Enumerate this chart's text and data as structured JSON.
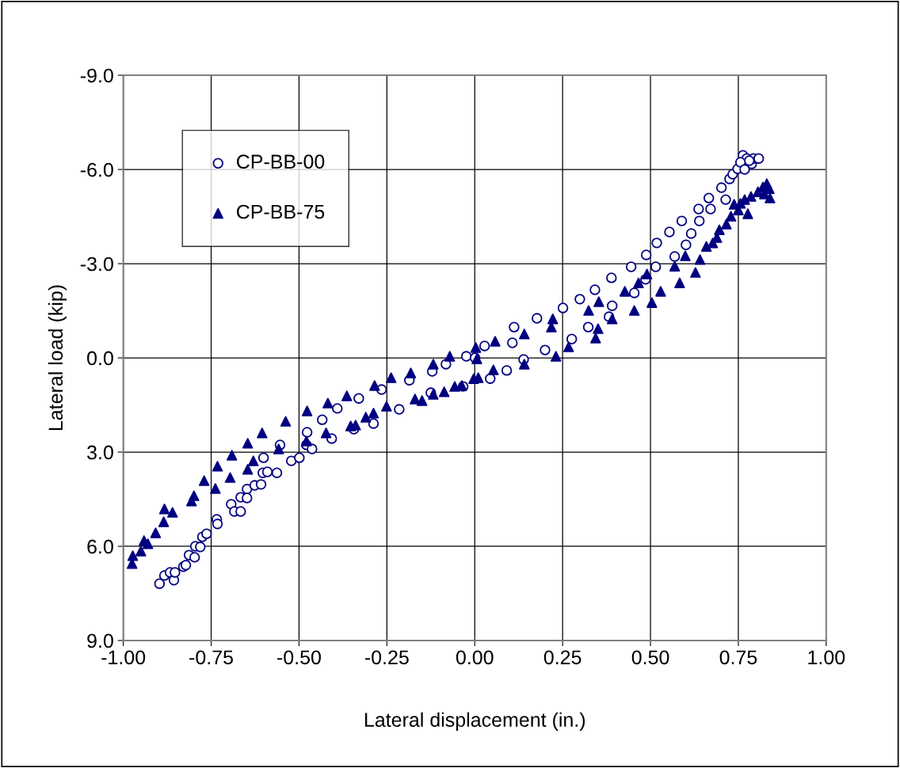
{
  "chart_data": {
    "type": "scatter",
    "xlabel": "Lateral displacement (in.)",
    "ylabel": "Lateral load (kip)",
    "xlim": [
      -1.0,
      1.0
    ],
    "xticks": [
      {
        "value": -1.0,
        "label": "-1.00"
      },
      {
        "value": -0.75,
        "label": "-0.75"
      },
      {
        "value": -0.5,
        "label": "-0.50"
      },
      {
        "value": -0.25,
        "label": "-0.25"
      },
      {
        "value": 0,
        "label": "0.00"
      },
      {
        "value": 0.25,
        "label": "0.25"
      },
      {
        "value": 0.5,
        "label": "0.50"
      },
      {
        "value": 0.75,
        "label": "0.75"
      },
      {
        "value": 1.0,
        "label": "1.00"
      }
    ],
    "ylim": [
      9,
      -9
    ],
    "yticks": [
      {
        "value": -9,
        "label": "-9.0"
      },
      {
        "value": -6,
        "label": "-6.0"
      },
      {
        "value": -3,
        "label": "-3.0"
      },
      {
        "value": 0,
        "label": "0.0"
      },
      {
        "value": 3,
        "label": "3.0"
      },
      {
        "value": 6,
        "label": "6.0"
      },
      {
        "value": 9,
        "label": "9.0"
      }
    ],
    "grid": true,
    "legend": "top left",
    "series": [
      {
        "name": "CP-BB-00",
        "color": "#000080",
        "marker": "circle",
        "x": [
          -0.897,
          -0.883,
          -0.867,
          -0.856,
          -0.853,
          -0.829,
          -0.822,
          -0.813,
          -0.797,
          -0.795,
          -0.781,
          -0.775,
          -0.763,
          -0.734,
          -0.732,
          -0.693,
          -0.684,
          -0.666,
          -0.666,
          -0.648,
          -0.648,
          -0.626,
          -0.608,
          -0.603,
          -0.59,
          -0.601,
          -0.563,
          -0.554,
          -0.522,
          -0.499,
          -0.477,
          -0.479,
          -0.463,
          -0.434,
          -0.407,
          -0.391,
          -0.344,
          -0.33,
          -0.288,
          -0.265,
          -0.215,
          -0.186,
          -0.125,
          -0.121,
          -0.082,
          -0.033,
          -0.024,
          0.001,
          0.028,
          0.044,
          0.091,
          0.107,
          0.112,
          0.139,
          0.177,
          0.2,
          0.251,
          0.276,
          0.299,
          0.323,
          0.342,
          0.382,
          0.391,
          0.389,
          0.445,
          0.454,
          0.486,
          0.488,
          0.515,
          0.518,
          0.569,
          0.554,
          0.601,
          0.616,
          0.589,
          0.639,
          0.637,
          0.666,
          0.671,
          0.702,
          0.714,
          0.725,
          0.734,
          0.748,
          0.763,
          0.774,
          0.788,
          0.793,
          0.808,
          0.781,
          0.756,
          0.768
        ],
        "values": [
          7.19,
          6.93,
          6.83,
          7.08,
          6.83,
          6.65,
          6.6,
          6.28,
          6.35,
          6.0,
          6.02,
          5.7,
          5.6,
          5.14,
          5.29,
          4.66,
          4.89,
          4.89,
          4.44,
          4.18,
          4.46,
          4.06,
          4.03,
          3.66,
          3.63,
          3.18,
          3.66,
          2.77,
          3.28,
          3.18,
          2.37,
          2.77,
          2.9,
          1.97,
          2.57,
          1.61,
          2.27,
          1.29,
          2.09,
          1.01,
          1.64,
          0.71,
          1.11,
          0.43,
          0.2,
          0.91,
          -0.05,
          0.0,
          -0.38,
          0.66,
          0.4,
          -0.48,
          -0.98,
          0.05,
          -1.26,
          -0.25,
          -1.59,
          -0.6,
          -1.87,
          -0.98,
          -2.17,
          -1.31,
          -1.66,
          -2.55,
          -2.9,
          -2.07,
          -2.5,
          -3.28,
          -2.9,
          -3.66,
          -3.23,
          -4.01,
          -3.6,
          -3.96,
          -4.36,
          -4.36,
          -4.74,
          -5.09,
          -4.74,
          -5.42,
          -5.04,
          -5.7,
          -5.85,
          -6.02,
          -6.45,
          -6.35,
          -6.18,
          -6.35,
          -6.35,
          -6.28,
          -6.23,
          -6.0
        ]
      },
      {
        "name": "CP-BB-75",
        "color": "#000080",
        "marker": "triangle",
        "x": [
          -0.975,
          -0.973,
          -0.95,
          -0.941,
          -0.93,
          -0.908,
          -0.885,
          -0.883,
          -0.86,
          -0.806,
          -0.799,
          -0.77,
          -0.738,
          -0.732,
          -0.696,
          -0.691,
          -0.646,
          -0.646,
          -0.63,
          -0.605,
          -0.558,
          -0.538,
          -0.479,
          -0.477,
          -0.423,
          -0.418,
          -0.353,
          -0.364,
          -0.339,
          -0.31,
          -0.288,
          -0.285,
          -0.251,
          -0.238,
          -0.182,
          -0.17,
          -0.15,
          -0.118,
          -0.118,
          -0.087,
          -0.071,
          -0.057,
          -0.037,
          -0.003,
          0.003,
          0.006,
          0.01,
          0.053,
          0.058,
          0.141,
          0.141,
          0.222,
          0.218,
          0.231,
          0.267,
          0.324,
          0.344,
          0.351,
          0.353,
          0.391,
          0.427,
          0.454,
          0.466,
          0.49,
          0.504,
          0.529,
          0.569,
          0.583,
          0.599,
          0.628,
          0.641,
          0.659,
          0.677,
          0.689,
          0.696,
          0.716,
          0.729,
          0.738,
          0.756,
          0.75,
          0.768,
          0.777,
          0.786,
          0.806,
          0.82,
          0.831,
          0.838,
          0.84,
          0.824
        ],
        "values": [
          6.55,
          6.3,
          6.15,
          5.82,
          5.92,
          5.57,
          5.22,
          4.81,
          4.92,
          4.56,
          4.39,
          3.91,
          4.16,
          3.45,
          3.81,
          3.1,
          3.55,
          2.72,
          3.28,
          2.39,
          2.9,
          2.02,
          2.65,
          1.69,
          2.39,
          1.44,
          2.17,
          1.21,
          2.14,
          1.89,
          1.76,
          0.88,
          1.54,
          0.63,
          0.48,
          1.31,
          1.36,
          0.2,
          1.16,
          1.08,
          -0.05,
          0.91,
          0.88,
          0.66,
          -0.33,
          0.03,
          0.63,
          0.38,
          -0.53,
          -0.76,
          0.2,
          -1.24,
          -0.98,
          -0.05,
          -0.35,
          -1.51,
          -0.63,
          -0.93,
          -1.79,
          -1.24,
          -2.12,
          -1.51,
          -2.39,
          -2.67,
          -1.76,
          -2.12,
          -2.92,
          -2.39,
          -3.25,
          -2.72,
          -3.13,
          -3.55,
          -3.66,
          -3.83,
          -4.08,
          -4.26,
          -4.51,
          -4.89,
          -4.92,
          -4.71,
          -5.04,
          -4.59,
          -5.14,
          -5.29,
          -5.44,
          -5.55,
          -5.39,
          -5.09,
          -5.22
        ]
      }
    ]
  }
}
